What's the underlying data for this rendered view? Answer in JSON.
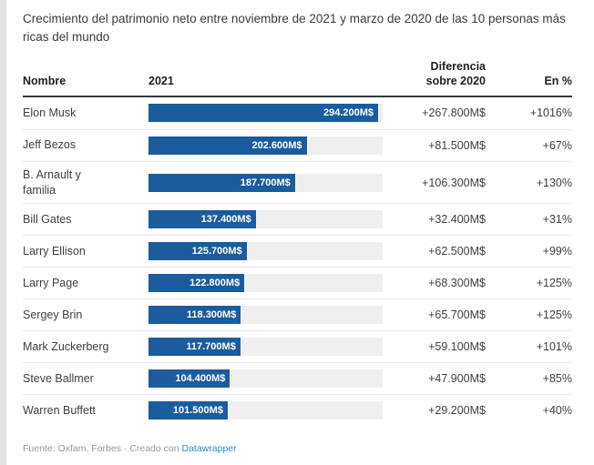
{
  "title": "Crecimiento del patrimonio neto entre noviembre de 2021 y marzo de 2020 de las 10 personas más ricas del mundo",
  "columns": {
    "name": "Nombre",
    "year": "2021",
    "diff_line1": "Diferencia",
    "diff_line2": "sobre 2020",
    "pct": "En %"
  },
  "rows": [
    {
      "name": "Elon Musk",
      "value": 294200,
      "value_label": "294.200M$",
      "diff_label": "+267.800M$",
      "pct_label": "+1016%"
    },
    {
      "name": "Jeff Bezos",
      "value": 202600,
      "value_label": "202.600M$",
      "diff_label": "+81.500M$",
      "pct_label": "+67%"
    },
    {
      "name": "B. Arnault y\nfamilia",
      "value": 187700,
      "value_label": "187.700M$",
      "diff_label": "+106.300M$",
      "pct_label": "+130%"
    },
    {
      "name": "Bill Gates",
      "value": 137400,
      "value_label": "137.400M$",
      "diff_label": "+32.400M$",
      "pct_label": "+31%"
    },
    {
      "name": "Larry Ellison",
      "value": 125700,
      "value_label": "125.700M$",
      "diff_label": "+62.500M$",
      "pct_label": "+99%"
    },
    {
      "name": "Larry Page",
      "value": 122800,
      "value_label": "122.800M$",
      "diff_label": "+68.300M$",
      "pct_label": "+125%"
    },
    {
      "name": "Sergey Brin",
      "value": 118300,
      "value_label": "118.300M$",
      "diff_label": "+65.700M$",
      "pct_label": "+125%"
    },
    {
      "name": "Mark Zuckerberg",
      "value": 117700,
      "value_label": "117.700M$",
      "diff_label": "+59.100M$",
      "pct_label": "+101%"
    },
    {
      "name": "Steve Ballmer",
      "value": 104400,
      "value_label": "104.400M$",
      "diff_label": "+47.900M$",
      "pct_label": "+85%"
    },
    {
      "name": "Warren Buffett",
      "value": 101500,
      "value_label": "101.500M$",
      "diff_label": "+29.200M$",
      "pct_label": "+40%"
    }
  ],
  "footer": {
    "source_text": "Fuente: Oxfam, Forbes · Creado con ",
    "link_label": "Datawrapper"
  },
  "colors": {
    "bar": "#1a5c9e",
    "track": "#efefef",
    "link": "#2d8ac9"
  },
  "chart_data": {
    "type": "bar",
    "orientation": "horizontal",
    "title": "Crecimiento del patrimonio neto entre noviembre de 2021 y marzo de 2020 de las 10 personas más ricas del mundo",
    "categories": [
      "Elon Musk",
      "Jeff Bezos",
      "B. Arnault y familia",
      "Bill Gates",
      "Larry Ellison",
      "Larry Page",
      "Sergey Brin",
      "Mark Zuckerberg",
      "Steve Ballmer",
      "Warren Buffett"
    ],
    "series": [
      {
        "name": "2021",
        "unit": "M$",
        "values": [
          294200,
          202600,
          187700,
          137400,
          125700,
          122800,
          118300,
          117700,
          104400,
          101500
        ]
      },
      {
        "name": "Diferencia sobre 2020",
        "unit": "M$",
        "values": [
          267800,
          81500,
          106300,
          32400,
          62500,
          68300,
          65700,
          59100,
          47900,
          29200
        ]
      },
      {
        "name": "En %",
        "unit": "%",
        "values": [
          1016,
          67,
          130,
          31,
          99,
          125,
          125,
          101,
          85,
          40
        ]
      }
    ],
    "xmax": 300000,
    "grid": false,
    "legend": "none",
    "source": "Fuente: Oxfam, Forbes"
  }
}
